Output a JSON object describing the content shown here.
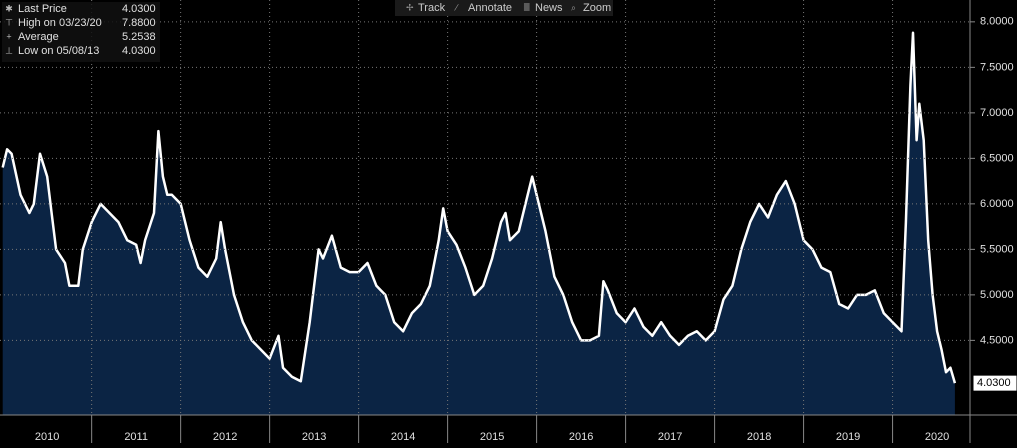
{
  "toolbar": [
    "Track",
    "Annotate",
    "News",
    "Zoom"
  ],
  "legend": [
    {
      "name": "Last Price",
      "value": "4.0300"
    },
    {
      "name": "High on 03/23/20",
      "value": "7.8800"
    },
    {
      "name": "Average",
      "value": "5.2538"
    },
    {
      "name": "Low on 05/08/13",
      "value": "4.0300"
    }
  ],
  "chart_data": {
    "type": "area",
    "series": [
      {
        "name": "Last Price",
        "color": "#ffffff",
        "fill": "#0b2444",
        "x": [
          2010.0,
          2010.05,
          2010.1,
          2010.2,
          2010.3,
          2010.35,
          2010.42,
          2010.5,
          2010.55,
          2010.6,
          2010.7,
          2010.75,
          2010.85,
          2010.9,
          2011.0,
          2011.1,
          2011.2,
          2011.3,
          2011.4,
          2011.5,
          2011.55,
          2011.6,
          2011.7,
          2011.75,
          2011.8,
          2011.85,
          2011.9,
          2012.0,
          2012.1,
          2012.2,
          2012.3,
          2012.4,
          2012.45,
          2012.5,
          2012.6,
          2012.7,
          2012.8,
          2012.9,
          2013.0,
          2013.1,
          2013.15,
          2013.25,
          2013.35,
          2013.45,
          2013.5,
          2013.55,
          2013.6,
          2013.7,
          2013.8,
          2013.9,
          2014.0,
          2014.1,
          2014.2,
          2014.3,
          2014.4,
          2014.5,
          2014.6,
          2014.7,
          2014.8,
          2014.9,
          2014.95,
          2015.0,
          2015.1,
          2015.2,
          2015.3,
          2015.4,
          2015.5,
          2015.6,
          2015.65,
          2015.7,
          2015.8,
          2015.9,
          2015.95,
          2016.0,
          2016.1,
          2016.2,
          2016.3,
          2016.4,
          2016.5,
          2016.6,
          2016.7,
          2016.75,
          2016.8,
          2016.9,
          2017.0,
          2017.1,
          2017.2,
          2017.3,
          2017.4,
          2017.5,
          2017.6,
          2017.7,
          2017.8,
          2017.9,
          2018.0,
          2018.1,
          2018.2,
          2018.3,
          2018.4,
          2018.5,
          2018.6,
          2018.7,
          2018.8,
          2018.9,
          2019.0,
          2019.1,
          2019.2,
          2019.3,
          2019.4,
          2019.5,
          2019.6,
          2019.7,
          2019.8,
          2019.9,
          2020.0,
          2020.1,
          2020.15,
          2020.2,
          2020.23,
          2020.27,
          2020.3,
          2020.35,
          2020.4,
          2020.45,
          2020.5,
          2020.55,
          2020.6,
          2020.65,
          2020.7
        ],
        "values": [
          6.4,
          6.6,
          6.55,
          6.1,
          5.9,
          6.0,
          6.55,
          6.3,
          5.9,
          5.5,
          5.35,
          5.1,
          5.1,
          5.5,
          5.8,
          6.0,
          5.9,
          5.8,
          5.6,
          5.55,
          5.35,
          5.6,
          5.9,
          6.8,
          6.3,
          6.1,
          6.1,
          6.0,
          5.6,
          5.3,
          5.2,
          5.4,
          5.8,
          5.5,
          5.0,
          4.7,
          4.5,
          4.4,
          4.3,
          4.55,
          4.2,
          4.1,
          4.05,
          4.7,
          5.1,
          5.5,
          5.4,
          5.65,
          5.3,
          5.25,
          5.25,
          5.35,
          5.1,
          5.0,
          4.7,
          4.6,
          4.8,
          4.9,
          5.1,
          5.6,
          5.95,
          5.7,
          5.55,
          5.3,
          5.0,
          5.1,
          5.4,
          5.8,
          5.9,
          5.6,
          5.7,
          6.1,
          6.3,
          6.1,
          5.7,
          5.2,
          5.0,
          4.7,
          4.5,
          4.5,
          4.55,
          5.15,
          5.05,
          4.8,
          4.7,
          4.85,
          4.65,
          4.55,
          4.7,
          4.55,
          4.45,
          4.55,
          4.6,
          4.5,
          4.6,
          4.95,
          5.1,
          5.5,
          5.8,
          6.0,
          5.85,
          6.1,
          6.25,
          6.0,
          5.6,
          5.5,
          5.3,
          5.25,
          4.9,
          4.85,
          5.0,
          5.0,
          5.05,
          4.8,
          4.7,
          4.6,
          5.8,
          7.3,
          7.88,
          6.7,
          7.1,
          6.7,
          5.6,
          5.0,
          4.6,
          4.4,
          4.15,
          4.2,
          4.03
        ]
      }
    ],
    "xlim": [
      2009.97,
      2020.87
    ],
    "xticks": [
      2010,
      2011,
      2012,
      2013,
      2014,
      2015,
      2016,
      2017,
      2018,
      2019,
      2020
    ],
    "ylim": [
      3.68,
      8.24
    ],
    "yticks": [
      {
        "value": 4.5,
        "label": "4.5000"
      },
      {
        "value": 5,
        "label": "5.0000"
      },
      {
        "value": 5.5,
        "label": "5.5000"
      },
      {
        "value": 6,
        "label": "6.0000"
      },
      {
        "value": 6.5,
        "label": "6.5000"
      },
      {
        "value": 7,
        "label": "7.0000"
      },
      {
        "value": 7.5,
        "label": "7.5000"
      },
      {
        "value": 8,
        "label": "8.0000"
      }
    ],
    "grid": true
  }
}
